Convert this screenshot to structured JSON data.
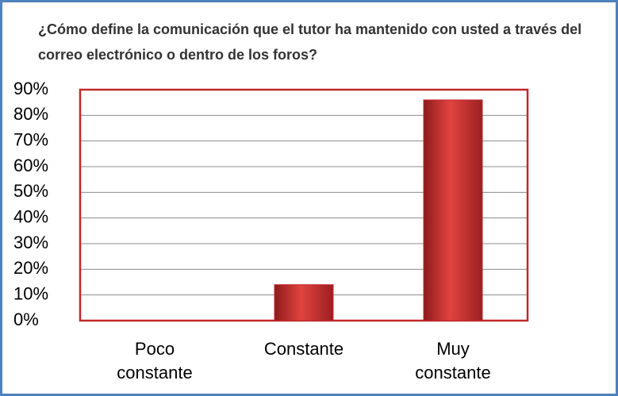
{
  "chart_data": {
    "type": "bar",
    "title": "¿Cómo define la comunicación que el tutor ha mantenido con usted a través del correo electrónico o dentro de los foros?",
    "categories": [
      "Poco constante",
      "Constante",
      "Muy constante"
    ],
    "values": [
      0,
      14,
      86
    ],
    "color": "#c0282a",
    "ylim": [
      0,
      90
    ],
    "yticks": [
      {
        "value": 0,
        "label": "0%"
      },
      {
        "value": 10,
        "label": "10%"
      },
      {
        "value": 20,
        "label": "20%"
      },
      {
        "value": 30,
        "label": "30%"
      },
      {
        "value": 40,
        "label": "40%"
      },
      {
        "value": 50,
        "label": "50%"
      },
      {
        "value": 60,
        "label": "60%"
      },
      {
        "value": 70,
        "label": "70%"
      },
      {
        "value": 80,
        "label": "80%"
      },
      {
        "value": 90,
        "label": "90%"
      }
    ],
    "grid": true
  }
}
